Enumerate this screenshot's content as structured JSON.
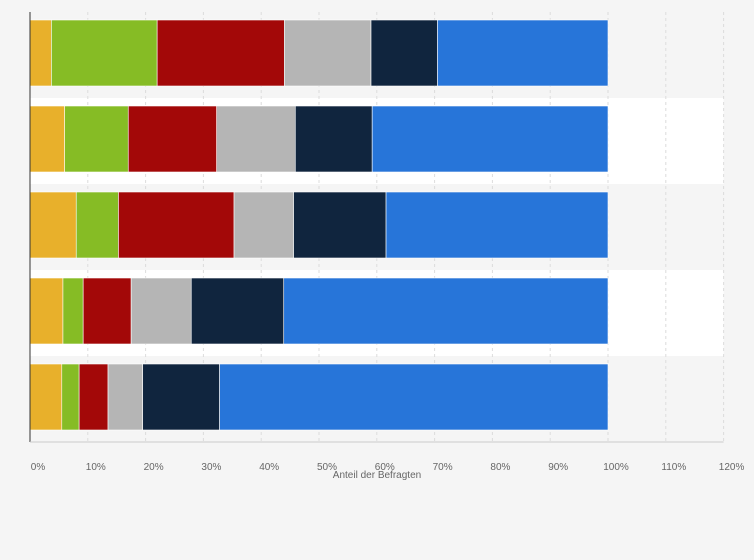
{
  "chart_data": {
    "type": "bar",
    "orientation": "horizontal",
    "stacked": true,
    "title": "",
    "xlabel": "Anteil der Befragten",
    "ylabel": "",
    "xlim": [
      0,
      120
    ],
    "x_ticks": [
      "0%",
      "10%",
      "20%",
      "30%",
      "40%",
      "50%",
      "60%",
      "70%",
      "80%",
      "90%",
      "100%",
      "110%",
      "120%"
    ],
    "categories": [
      "",
      "",
      "",
      "",
      ""
    ],
    "series": [
      {
        "color": "#e8b02b",
        "values": [
          3.7,
          6.0,
          8.0,
          5.7,
          5.5
        ]
      },
      {
        "color": "#86bc25",
        "values": [
          18.3,
          11.0,
          7.3,
          3.5,
          3.0
        ]
      },
      {
        "color": "#a30808",
        "values": [
          22.0,
          15.3,
          20.0,
          8.3,
          5.0
        ]
      },
      {
        "color": "#b5b5b5",
        "values": [
          15.0,
          13.6,
          10.3,
          10.4,
          6.0
        ]
      },
      {
        "color": "#10253e",
        "values": [
          11.5,
          13.3,
          16.0,
          16.0,
          13.3
        ]
      },
      {
        "color": "#2775d9",
        "values": [
          29.5,
          40.8,
          38.4,
          56.1,
          67.2
        ]
      }
    ],
    "grid": true,
    "legend": "none"
  }
}
